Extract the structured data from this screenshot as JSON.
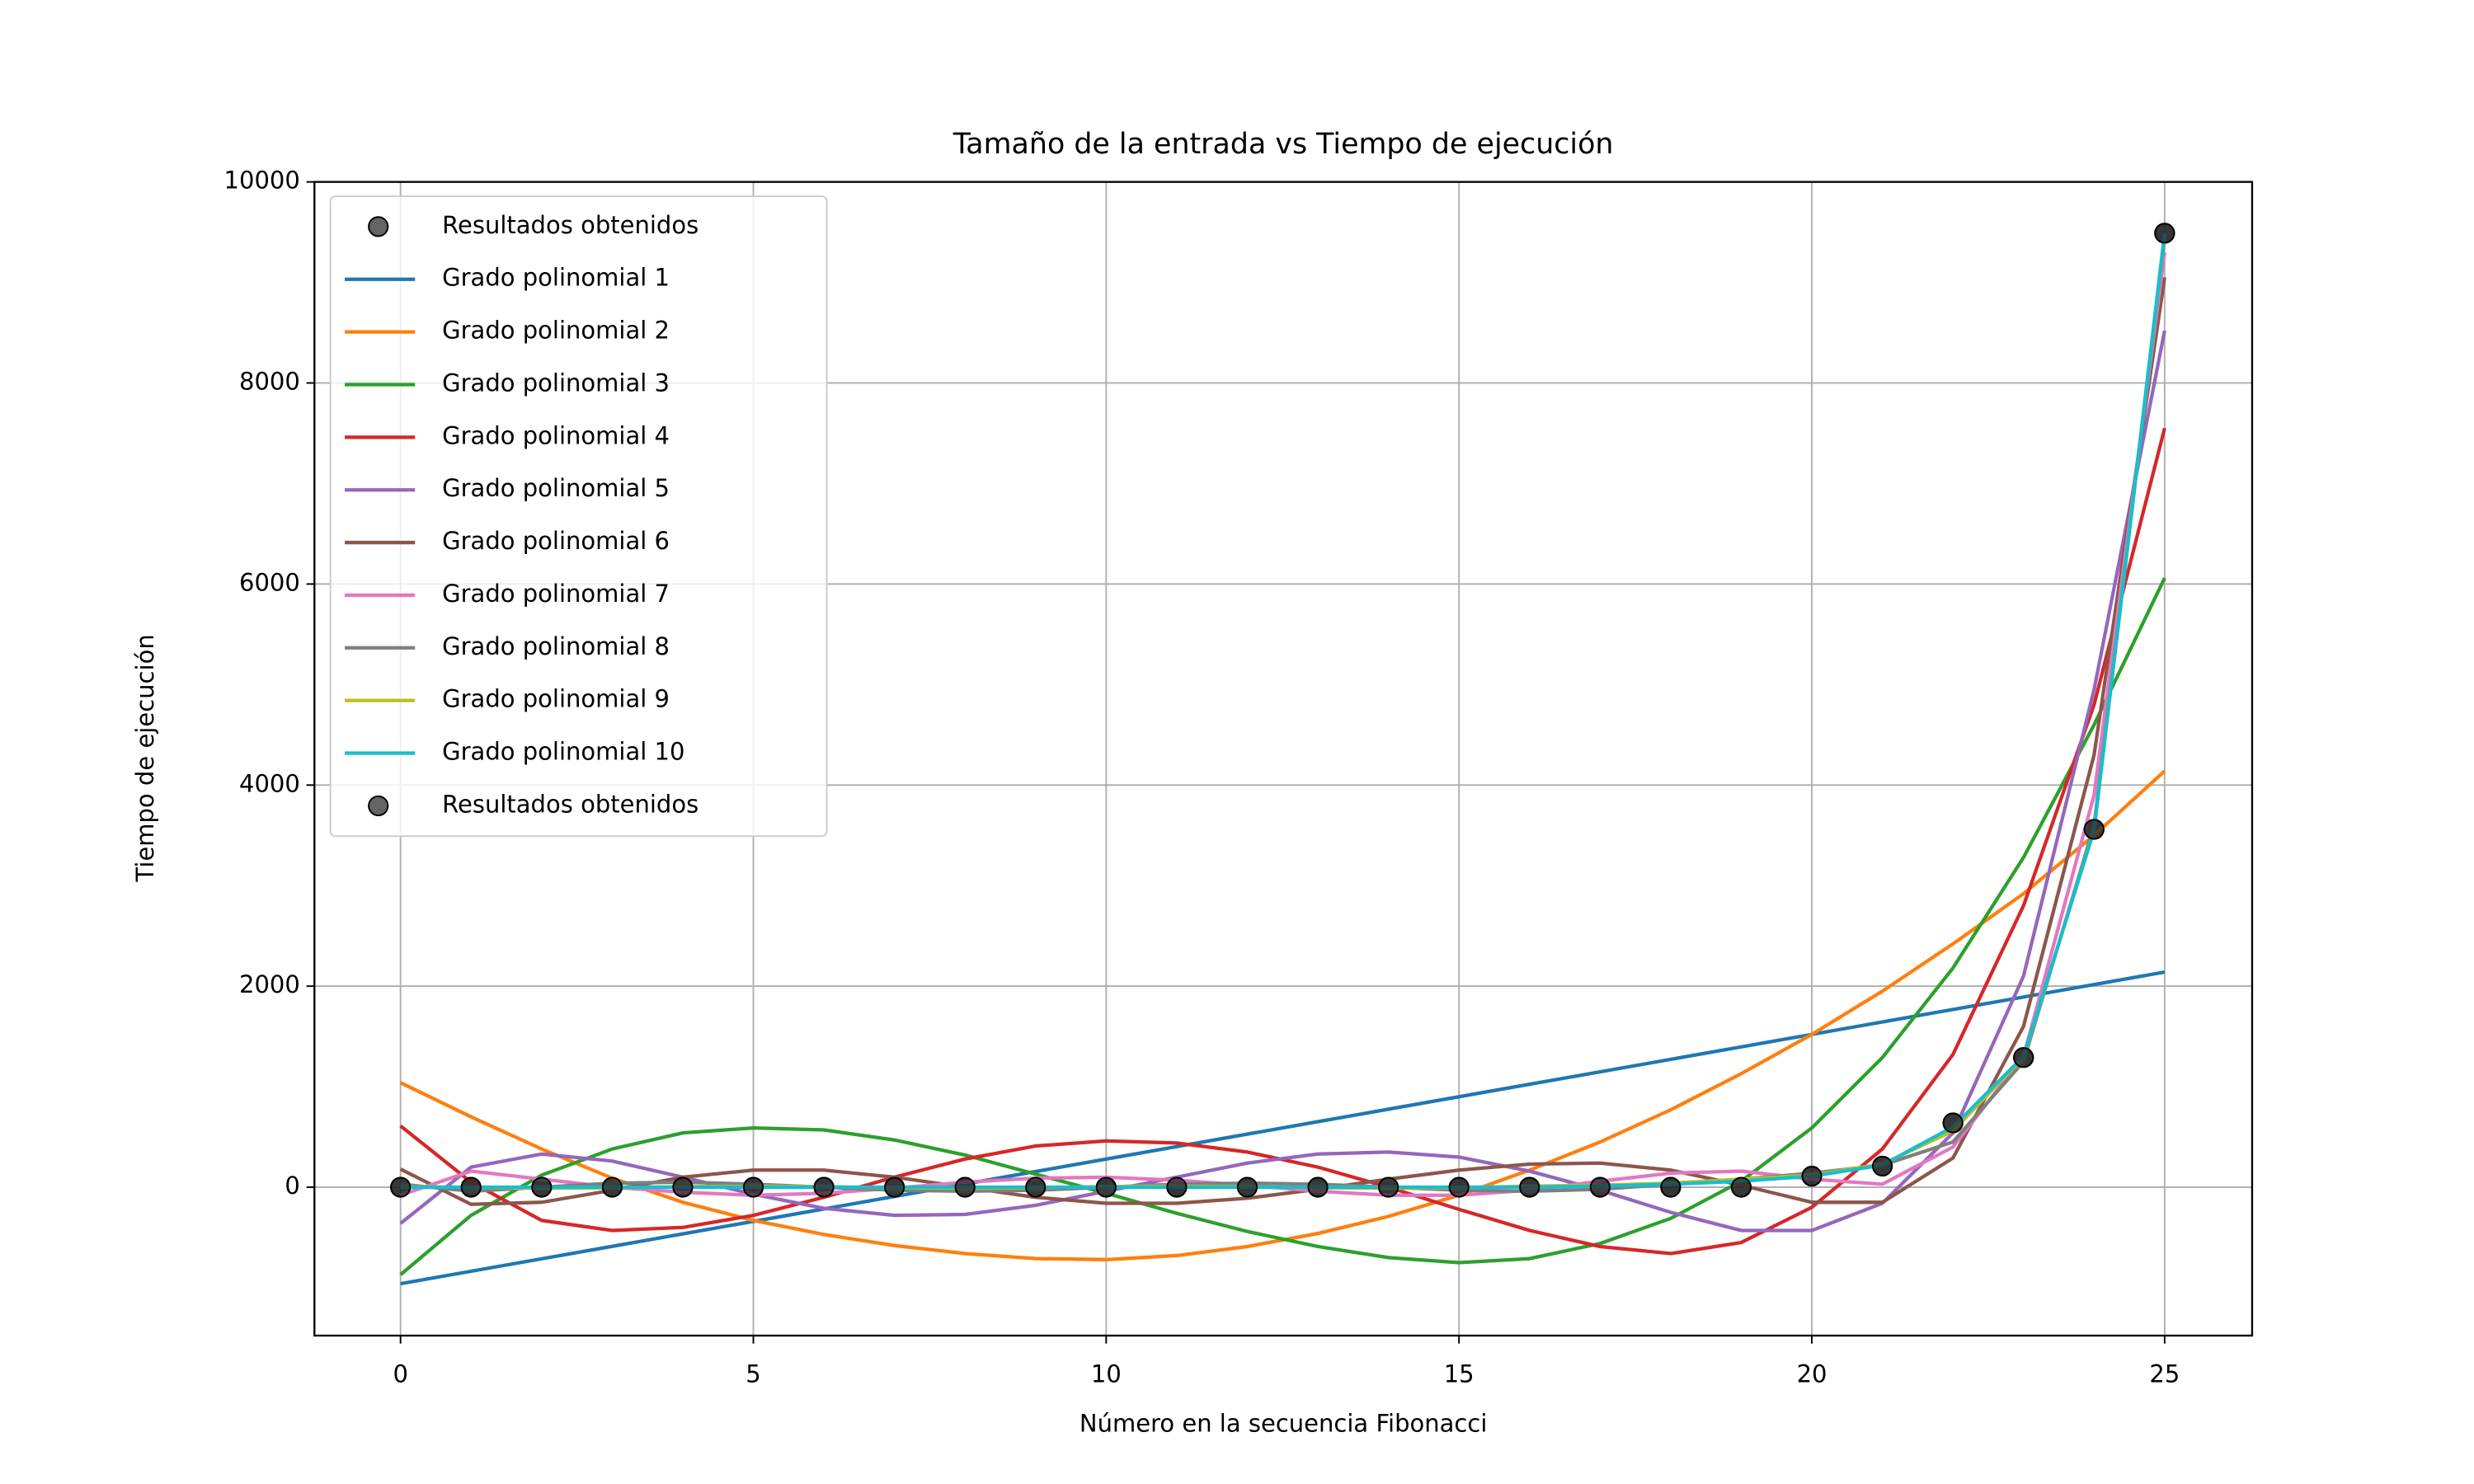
{
  "chart_data": {
    "type": "line",
    "title": "Tamaño de la entrada vs Tiempo de ejecución",
    "x_label": "Número en la secuencia Fibonacci",
    "y_label": "Tiempo de ejecución",
    "x": [
      0,
      1,
      2,
      3,
      4,
      5,
      6,
      7,
      8,
      9,
      10,
      11,
      12,
      13,
      14,
      15,
      16,
      17,
      18,
      19,
      20,
      21,
      22,
      23,
      24,
      25
    ],
    "xlim": [
      -1.22,
      26.24
    ],
    "ylim": [
      -1476,
      10000
    ],
    "xticks": [
      0,
      5,
      10,
      15,
      20,
      25
    ],
    "yticks": [
      0,
      2000,
      4000,
      6000,
      8000,
      10000
    ],
    "grid": true,
    "legend": "upper-left",
    "series": [
      {
        "name": "Resultados obtenidos",
        "type": "scatter",
        "color": "#222222",
        "values": [
          0,
          0,
          0,
          0,
          0,
          0,
          0,
          0,
          0,
          0,
          0,
          0,
          0,
          0,
          0,
          0,
          0,
          0,
          0,
          0,
          110,
          210,
          640,
          1290,
          3560,
          9490
        ]
      },
      {
        "name": "Grado polinomial 1",
        "color": "#1f77b4",
        "values": [
          -960,
          -836,
          -712,
          -588,
          -464,
          -340,
          -216,
          -92,
          32,
          156,
          280,
          404,
          528,
          652,
          776,
          900,
          1024,
          1148,
          1272,
          1396,
          1520,
          1644,
          1768,
          1892,
          2016,
          2140
        ]
      },
      {
        "name": "Grado polinomial 2",
        "color": "#ff7f0e",
        "values": [
          1040,
          700,
          380,
          90,
          -150,
          -330,
          -470,
          -580,
          -660,
          -710,
          -720,
          -680,
          -590,
          -460,
          -290,
          -80,
          170,
          450,
          770,
          1130,
          1520,
          1950,
          2420,
          2920,
          3500,
          4140
        ]
      },
      {
        "name": "Grado polinomial 3",
        "color": "#2ca02c",
        "values": [
          -870,
          -280,
          120,
          380,
          540,
          590,
          570,
          470,
          320,
          130,
          -60,
          -260,
          -440,
          -590,
          -700,
          -750,
          -710,
          -560,
          -310,
          60,
          590,
          1290,
          2180,
          3280,
          4600,
          6060
        ]
      },
      {
        "name": "Grado polinomial 4",
        "color": "#d62728",
        "values": [
          610,
          50,
          -330,
          -430,
          -400,
          -280,
          -100,
          100,
          280,
          410,
          460,
          440,
          350,
          200,
          0,
          -220,
          -430,
          -590,
          -660,
          -550,
          -200,
          380,
          1320,
          2800,
          4800,
          7550
        ]
      },
      {
        "name": "Grado polinomial 5",
        "color": "#9467bd",
        "values": [
          -360,
          200,
          330,
          260,
          100,
          -70,
          -210,
          -280,
          -270,
          -180,
          -40,
          100,
          240,
          330,
          350,
          300,
          160,
          -30,
          -250,
          -430,
          -430,
          -160,
          540,
          2100,
          4950,
          8520
        ]
      },
      {
        "name": "Grado polinomial 6",
        "color": "#8c564b",
        "values": [
          180,
          -170,
          -150,
          -30,
          100,
          170,
          170,
          100,
          0,
          -100,
          -160,
          -160,
          -110,
          -20,
          80,
          170,
          230,
          240,
          170,
          20,
          -150,
          -150,
          290,
          1600,
          4300,
          9050
        ]
      },
      {
        "name": "Grado polinomial 7",
        "color": "#e377c2",
        "values": [
          -80,
          160,
          80,
          0,
          -50,
          -80,
          -60,
          -10,
          50,
          90,
          100,
          70,
          20,
          -40,
          -80,
          -80,
          -30,
          60,
          140,
          160,
          80,
          30,
          400,
          1300,
          3900,
          9300
        ]
      },
      {
        "name": "Grado polinomial 8",
        "color": "#7f7f7f",
        "values": [
          30,
          -40,
          0,
          40,
          50,
          30,
          0,
          -30,
          -40,
          -30,
          0,
          30,
          40,
          30,
          0,
          -30,
          -40,
          -20,
          30,
          80,
          140,
          220,
          450,
          1250,
          3600,
          9450
        ]
      },
      {
        "name": "Grado polinomial 9",
        "color": "#bcbd22",
        "values": [
          5,
          0,
          -10,
          -5,
          5,
          10,
          5,
          -5,
          -10,
          -5,
          5,
          10,
          5,
          -5,
          -10,
          -5,
          10,
          20,
          40,
          80,
          120,
          230,
          560,
          1290,
          3560,
          9480
        ]
      },
      {
        "name": "Grado polinomial 10",
        "color": "#17becf",
        "values": [
          0,
          0,
          0,
          0,
          0,
          0,
          0,
          0,
          0,
          0,
          0,
          0,
          0,
          0,
          0,
          0,
          0,
          10,
          30,
          60,
          110,
          220,
          600,
          1300,
          3550,
          9490
        ]
      },
      {
        "name": "Resultados obtenidos",
        "type": "scatter",
        "color": "#222222",
        "values": [
          0,
          0,
          0,
          0,
          0,
          0,
          0,
          0,
          0,
          0,
          0,
          0,
          0,
          0,
          0,
          0,
          0,
          0,
          0,
          0,
          110,
          210,
          640,
          1290,
          3560,
          9490
        ]
      }
    ]
  }
}
